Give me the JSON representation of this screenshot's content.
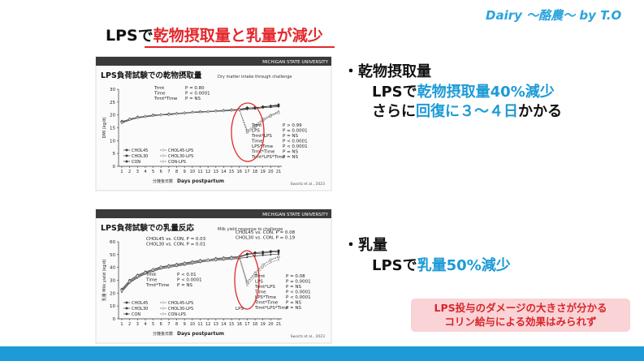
{
  "header": {
    "brand": "Dairy ～酪農～ by T.O"
  },
  "title": {
    "plain": "LPSで",
    "highlight": "乾物摂取量と乳量が減少"
  },
  "bullets": [
    {
      "heading": "・乾物摂取量",
      "lines": [
        [
          "LPSで",
          "乾物摂取量40%減少"
        ],
        [
          "さらに",
          "回復に３～４日",
          "かかる"
        ]
      ]
    },
    {
      "heading": "・乳量",
      "lines": [
        [
          "LPSで",
          "乳量50%減少"
        ]
      ]
    }
  ],
  "note": [
    "LPS投与のダメージの大きさが分かる",
    "コリン給与による効果はみられず"
  ],
  "chart_data": [
    {
      "type": "line",
      "brand": "MICHIGAN STATE UNIVERSITY",
      "title": "LPS負荷試験での乾物摂取量",
      "subtitle": "Dry matter intake through challenge",
      "y_label": "DMI (kg/d)",
      "x_label_jp": "分娩後日数",
      "x_label": "Days postpartum",
      "citation": "Swartz et al., 2023",
      "x": [
        1,
        2,
        3,
        4,
        5,
        6,
        7,
        8,
        9,
        10,
        11,
        12,
        13,
        14,
        15,
        16,
        17,
        18,
        19,
        20,
        21
      ],
      "xlim": [
        1,
        21
      ],
      "xticks": [
        1,
        2,
        3,
        4,
        5,
        6,
        7,
        8,
        9,
        10,
        11,
        12,
        13,
        14,
        15,
        16,
        17,
        18,
        19,
        20,
        21
      ],
      "ylim": [
        0,
        30
      ],
      "yticks": [
        0,
        5,
        10,
        15,
        20,
        25,
        30
      ],
      "series": [
        {
          "name": "CHOL45",
          "color": "#333333",
          "dashed": false,
          "values": [
            17,
            18.5,
            19,
            19.5,
            19.8,
            20,
            20.2,
            20.5,
            20.8,
            21,
            21.2,
            21.4,
            21.5,
            21.7,
            21.8,
            22,
            22.5,
            23,
            23,
            23.5,
            24
          ]
        },
        {
          "name": "CHOL30",
          "color": "#333333",
          "dashed": false,
          "values": [
            17.5,
            18.2,
            19.2,
            19.4,
            20,
            20.1,
            20.4,
            20.6,
            20.7,
            21.1,
            21.3,
            21.3,
            21.6,
            21.8,
            22,
            22.2,
            22.8,
            22.6,
            23.2,
            23.4,
            23.6
          ]
        },
        {
          "name": "CON",
          "color": "#333333",
          "dashed": false,
          "values": [
            16.8,
            18,
            18.8,
            19.2,
            19.6,
            20,
            20,
            20.4,
            20.6,
            20.9,
            21,
            21.2,
            21.4,
            21.5,
            21.7,
            21.9,
            22.2,
            22.4,
            22.8,
            23,
            23.2
          ]
        },
        {
          "name": "CHOL45-LPS",
          "color": "#777777",
          "dashed": true,
          "values": [
            17.2,
            18.4,
            19.1,
            19.6,
            19.9,
            20.2,
            20.3,
            20.6,
            20.9,
            21,
            21.1,
            21.3,
            21.6,
            21.8,
            21.9,
            22,
            14,
            16,
            18.5,
            20,
            21
          ]
        },
        {
          "name": "CHOL30-LPS",
          "color": "#777777",
          "dashed": true,
          "values": [
            17,
            18.3,
            18.9,
            19.3,
            19.7,
            20,
            20.2,
            20.5,
            20.7,
            21,
            21.2,
            21.4,
            21.5,
            21.6,
            21.8,
            22.1,
            13.5,
            15.5,
            18,
            19.5,
            20.8
          ]
        },
        {
          "name": "CON-LPS",
          "color": "#777777",
          "dashed": true,
          "values": [
            16.9,
            18.1,
            18.9,
            19.4,
            19.8,
            20.1,
            20.1,
            20.4,
            20.8,
            20.9,
            21.1,
            21.2,
            21.4,
            21.6,
            21.8,
            22,
            13,
            15,
            17.5,
            19.8,
            21.5
          ]
        }
      ],
      "stats": [
        {
          "lines": [
            [
              "Trmt",
              "P = 0.80"
            ],
            [
              "Time",
              "P < 0.0001"
            ],
            [
              "Trmt*Time",
              "P = NS"
            ]
          ]
        },
        {
          "lines": [
            [
              "Trmt",
              "P > 0.99"
            ],
            [
              "LPS",
              "P = 0.0001"
            ],
            [
              "Trmt*LPS",
              "P = NS"
            ],
            [
              "Time",
              "P < 0.0001"
            ],
            [
              "LPS*Time",
              "P < 0.0001"
            ],
            [
              "Trmt*Time",
              "P = NS"
            ],
            [
              "Trmt*LPS*Time",
              "P = NS"
            ]
          ]
        }
      ]
    },
    {
      "type": "line",
      "brand": "MICHIGAN STATE UNIVERSITY",
      "title": "LPS負荷試験での乳量反応",
      "subtitle": "Milk yield response to challenge",
      "y_label": "乳量 Milk yield (kg/d)",
      "x_label_jp": "分娩後日数",
      "x_label": "Days postpartum",
      "citation": "Swartz et al., 2023",
      "x": [
        1,
        2,
        3,
        4,
        5,
        6,
        7,
        8,
        9,
        10,
        11,
        12,
        13,
        14,
        15,
        16,
        17,
        18,
        19,
        20,
        21
      ],
      "xlim": [
        1,
        21
      ],
      "xticks": [
        1,
        2,
        3,
        4,
        5,
        6,
        7,
        8,
        9,
        10,
        11,
        12,
        13,
        14,
        15,
        16,
        17,
        18,
        19,
        20,
        21
      ],
      "ylim": [
        0,
        60
      ],
      "yticks": [
        0,
        10,
        20,
        30,
        40,
        50,
        60
      ],
      "series": [
        {
          "name": "CHOL45",
          "color": "#333333",
          "dashed": false,
          "values": [
            22,
            29,
            33,
            36,
            38,
            40,
            41,
            42,
            43,
            44,
            45,
            46,
            46.5,
            47,
            47.5,
            48,
            50,
            51,
            51,
            52,
            52
          ]
        },
        {
          "name": "CHOL30",
          "color": "#333333",
          "dashed": false,
          "values": [
            23,
            30,
            34,
            36.5,
            38.5,
            40.5,
            41.5,
            42.5,
            43.5,
            44.5,
            45.5,
            46,
            47,
            47.5,
            48,
            48.5,
            50.5,
            51.5,
            52,
            52.5,
            53
          ]
        },
        {
          "name": "CON",
          "color": "#333333",
          "dashed": false,
          "values": [
            21,
            28,
            32,
            35,
            37,
            39,
            40,
            41,
            42,
            43,
            44,
            45,
            45.5,
            46,
            46.5,
            47,
            48,
            49,
            49.5,
            50,
            50.5
          ]
        },
        {
          "name": "CHOL45-LPS",
          "color": "#777777",
          "dashed": true,
          "values": [
            22.5,
            29.5,
            33,
            36,
            38,
            40,
            41.2,
            42.2,
            43.2,
            44.2,
            45.2,
            46,
            46.6,
            47.2,
            47.6,
            48.2,
            29,
            36,
            42,
            46,
            48
          ]
        },
        {
          "name": "CHOL30-LPS",
          "color": "#777777",
          "dashed": true,
          "values": [
            22,
            29,
            33.5,
            36,
            38.2,
            40.2,
            41,
            42,
            43,
            44,
            45,
            45.8,
            46.4,
            47,
            47.4,
            48,
            28,
            35,
            42,
            46,
            48.5
          ]
        },
        {
          "name": "CON-LPS",
          "color": "#777777",
          "dashed": true,
          "values": [
            21.5,
            28.5,
            32.5,
            35.5,
            37.5,
            39.5,
            40.5,
            41.5,
            42.5,
            43.5,
            44.5,
            45.2,
            45.8,
            46.4,
            46.8,
            47.4,
            26,
            33,
            40,
            44,
            46
          ]
        }
      ],
      "stats": [
        {
          "lines": [
            [
              "CHOL45 vs. CON, P = 0.03"
            ],
            [
              "CHOL30 vs. CON, P = 0.01"
            ]
          ]
        },
        {
          "lines": [
            [
              "CHOL45 vs. CON, P = 0.08"
            ],
            [
              "CHOL30 vs. CON, P = 0.19"
            ]
          ]
        },
        {
          "lines": [
            [
              "Trmt",
              "P < 0.01"
            ],
            [
              "Time",
              "P < 0.0001"
            ],
            [
              "Trmt*Time",
              "P = NS"
            ]
          ]
        },
        {
          "lines": [
            [
              "Trmt",
              "P = 0.08"
            ],
            [
              "LPS",
              "P = 0.0001"
            ],
            [
              "Trmt*LPS",
              "P = NS"
            ],
            [
              "Time",
              "P < 0.0001"
            ],
            [
              "LPS*Time",
              "P < 0.0001"
            ],
            [
              "Trmt*Time",
              "P = NS"
            ],
            [
              "Trmt*LPS*Time",
              "P = NS"
            ]
          ]
        }
      ],
      "annotations": [
        "LPS"
      ]
    }
  ]
}
